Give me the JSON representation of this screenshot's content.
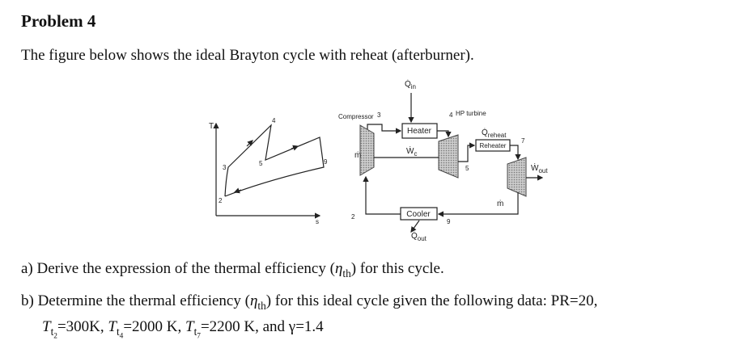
{
  "header": {
    "title": "Problem 4"
  },
  "intro": "The figure below shows the ideal Brayton cycle with reheat (afterburner).",
  "diagram": {
    "ts_plot": {
      "y_axis": "T",
      "x_axis": "s",
      "states": [
        "2",
        "3",
        "4",
        "5",
        "9"
      ]
    },
    "schematic": {
      "q_in": [
        "Q̇",
        "in"
      ],
      "compressor": "Compressor",
      "heater": "Heater",
      "hp_turbine": "HP turbine",
      "w_c": [
        "Ẇ",
        "c"
      ],
      "q_reheat": [
        "Q̇",
        "reheat"
      ],
      "reheater": "Reheater",
      "w_out": [
        "Ẇ",
        "out"
      ],
      "cooler": "Cooler",
      "q_out": [
        "Q̇",
        "out"
      ],
      "mass_flow": [
        "ṁ",
        "ṁ"
      ],
      "states": [
        "2",
        "3",
        "4",
        "5",
        "7",
        "9"
      ]
    }
  },
  "questions": [
    [
      "a) Derive the expression of the thermal efficiency (",
      "η",
      "th",
      ") for this cycle."
    ],
    [
      "b) Determine the thermal efficiency (",
      "η",
      "th",
      ") for this ideal cycle given the following data: PR=20,",
      "T",
      "t",
      "2",
      "=300K, ",
      "T",
      "t",
      "4",
      "=2000 K, ",
      "T",
      "t",
      "7",
      "=2200 K, and γ=1.4"
    ]
  ]
}
